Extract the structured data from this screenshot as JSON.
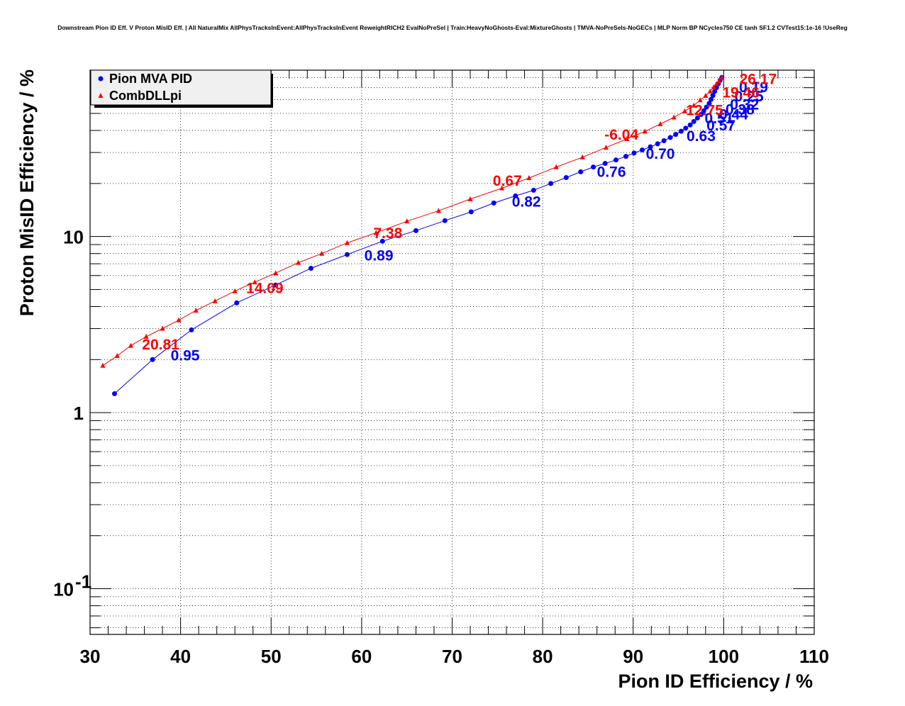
{
  "chart_data": {
    "type": "line",
    "title": "Downstream Pion ID Eff. V Proton MisID Eff. | All NaturalMix AllPhysTracksInEvent:AllPhysTracksInEvent ReweightRICH2 EvalNoPreSel | Train:HeavyNoGhosts-Eval:MixtureGhosts | TMVA-NoPreSels-NoGECs | MLP Norm BP NCycles750 CE tanh SF1.2 CVTest15:1e-16 !UseReg",
    "xlabel": "Pion ID Efficiency / %",
    "ylabel": "Proton MisID Efficiency / %",
    "xlim": [
      30,
      110
    ],
    "ylim": [
      0.055,
      88
    ],
    "yscale": "log",
    "grid": true,
    "legend_position": "top-left",
    "x_ticks": [
      {
        "value": 30,
        "label": "30"
      },
      {
        "value": 40,
        "label": "40"
      },
      {
        "value": 50,
        "label": "50"
      },
      {
        "value": 60,
        "label": "60"
      },
      {
        "value": 70,
        "label": "70"
      },
      {
        "value": 80,
        "label": "80"
      },
      {
        "value": 90,
        "label": "90"
      },
      {
        "value": 100,
        "label": "100"
      },
      {
        "value": 110,
        "label": "110"
      }
    ],
    "y_ticks": [
      {
        "value": 0.1,
        "base": "10",
        "exp": "-1"
      },
      {
        "value": 1,
        "base": "1",
        "exp": ""
      },
      {
        "value": 10,
        "base": "10",
        "exp": ""
      }
    ],
    "series": [
      {
        "name": "Pion MVA PID",
        "color": "#0000ff",
        "marker": "circle",
        "x": [
          32.7,
          36.9,
          41.2,
          46.2,
          50.5,
          54.4,
          58.4,
          62.3,
          66.0,
          69.2,
          72.1,
          74.6,
          77.0,
          79.0,
          80.9,
          82.6,
          84.2,
          85.6,
          86.9,
          88.1,
          89.2,
          90.1,
          91.0,
          91.9,
          92.7,
          93.4,
          94.1,
          94.7,
          95.3,
          95.8,
          96.3,
          96.7,
          97.1,
          97.5,
          97.8,
          98.1,
          98.4,
          98.6,
          98.8,
          99.0,
          99.2,
          99.4,
          99.6,
          99.8
        ],
        "y": [
          1.28,
          2.0,
          2.95,
          4.2,
          5.3,
          6.6,
          7.9,
          9.4,
          10.8,
          12.3,
          13.8,
          15.5,
          17.0,
          18.3,
          20.0,
          21.6,
          23.3,
          24.8,
          26.0,
          27.2,
          28.5,
          29.8,
          31.0,
          32.3,
          33.6,
          35.0,
          36.5,
          38.0,
          39.6,
          41.2,
          43.0,
          45.0,
          47.1,
          49.3,
          51.7,
          54.3,
          57.0,
          60.0,
          63.2,
          66.6,
          70.0,
          73.5,
          77.0,
          80.0
        ]
      },
      {
        "name": "CombDLLpi",
        "color": "#ff0000",
        "marker": "triangle",
        "x": [
          31.4,
          33.0,
          34.5,
          36.2,
          38.0,
          39.8,
          41.7,
          43.8,
          46.0,
          48.2,
          50.5,
          53.0,
          55.6,
          58.4,
          61.6,
          65.0,
          68.5,
          72.0,
          75.5,
          78.5,
          81.5,
          84.4,
          87.0,
          89.3,
          91.3,
          93.0,
          94.5,
          95.7,
          96.7,
          97.4,
          98.0,
          98.5,
          98.9,
          99.2,
          99.5,
          99.8
        ],
        "y": [
          1.85,
          2.1,
          2.4,
          2.7,
          3.0,
          3.35,
          3.8,
          4.3,
          4.9,
          5.5,
          6.2,
          7.1,
          8.0,
          9.2,
          10.5,
          12.2,
          14.0,
          16.3,
          18.8,
          21.5,
          24.8,
          28.2,
          32.0,
          35.8,
          39.5,
          43.5,
          47.5,
          51.5,
          55.5,
          59.5,
          63.0,
          66.8,
          70.5,
          73.5,
          76.5,
          80.0
        ]
      }
    ],
    "annotations": {
      "Pion MVA PID": [
        {
          "text": "0.95",
          "x": 40.5,
          "y": 1.98
        },
        {
          "text": "0.89",
          "x": 61.9,
          "y": 7.3
        },
        {
          "text": "0.82",
          "x": 78.2,
          "y": 14.8
        },
        {
          "text": "0.76",
          "x": 87.6,
          "y": 21.8
        },
        {
          "text": "0.70",
          "x": 93.0,
          "y": 27.6
        },
        {
          "text": "0.63",
          "x": 97.5,
          "y": 34.8
        },
        {
          "text": "0.57",
          "x": 99.7,
          "y": 40.0
        },
        {
          "text": "0.51",
          "x": 99.5,
          "y": 44.0
        },
        {
          "text": "0.44",
          "x": 101.1,
          "y": 46.2
        },
        {
          "text": "0.38",
          "x": 101.8,
          "y": 49.3
        },
        {
          "text": "0.32",
          "x": 102.3,
          "y": 52.7
        },
        {
          "text": "0.25",
          "x": 102.8,
          "y": 58.5
        },
        {
          "text": "0.19",
          "x": 103.3,
          "y": 66.0
        }
      ],
      "CombDLLpi": [
        {
          "text": "20.81",
          "x": 37.8,
          "y": 2.28
        },
        {
          "text": "14.09",
          "x": 49.3,
          "y": 4.78
        },
        {
          "text": "7.38",
          "x": 62.9,
          "y": 9.8
        },
        {
          "text": "0.67",
          "x": 76.1,
          "y": 19.4
        },
        {
          "text": "-6.04",
          "x": 88.7,
          "y": 35.5
        },
        {
          "text": "12.75",
          "x": 97.9,
          "y": 48.8
        },
        {
          "text": "19.46",
          "x": 101.9,
          "y": 61.5
        },
        {
          "text": "26.17",
          "x": 103.8,
          "y": 73.5
        }
      ]
    }
  }
}
